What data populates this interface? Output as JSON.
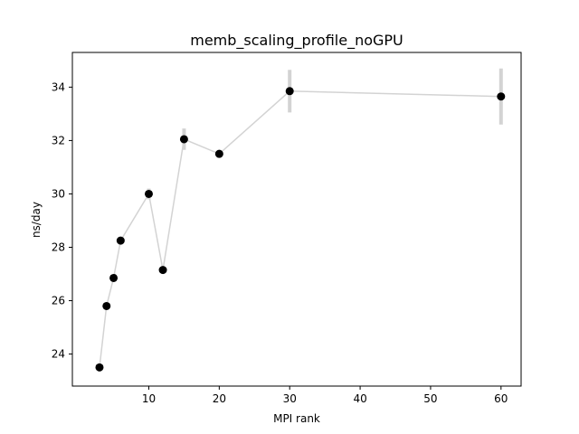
{
  "chart_data": {
    "type": "scatter",
    "title": "memb_scaling_profile_noGPU",
    "xlabel": "MPI rank",
    "ylabel": "ns/day",
    "xlim": [
      -0.85,
      62.85
    ],
    "ylim": [
      22.8,
      35.3
    ],
    "xticks": [
      10,
      20,
      30,
      40,
      50,
      60
    ],
    "yticks": [
      24,
      26,
      28,
      30,
      32,
      34
    ],
    "grid": false,
    "line_color": "#d3d3d3",
    "marker_color": "#000000",
    "points": [
      {
        "x": 3,
        "y": 23.5,
        "err": 0.1
      },
      {
        "x": 4,
        "y": 25.8,
        "err": 0.1
      },
      {
        "x": 5,
        "y": 26.85,
        "err": 0.1
      },
      {
        "x": 6,
        "y": 28.25,
        "err": 0.15
      },
      {
        "x": 10,
        "y": 30.0,
        "err": 0.2
      },
      {
        "x": 12,
        "y": 27.15,
        "err": 0.1
      },
      {
        "x": 15,
        "y": 32.05,
        "err": 0.4
      },
      {
        "x": 20,
        "y": 31.5,
        "err": 0.15
      },
      {
        "x": 30,
        "y": 33.85,
        "err": 0.8
      },
      {
        "x": 60,
        "y": 33.65,
        "err": 1.05
      }
    ]
  }
}
